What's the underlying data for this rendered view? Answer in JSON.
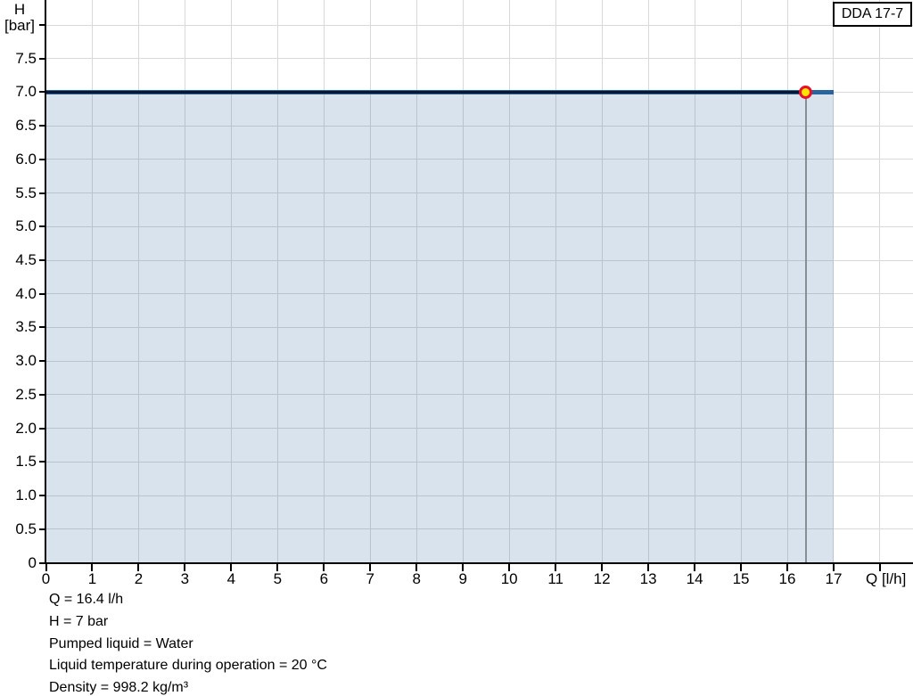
{
  "chart_data": {
    "type": "area",
    "title": "DDA 17-7",
    "xlabel": "Q [l/h]",
    "ylabel_line1": "H",
    "ylabel_line2": "[bar]",
    "xlim": [
      0,
      18.7
    ],
    "ylim": [
      0,
      8.37
    ],
    "x_tick_min": 0,
    "x_tick_max": 18,
    "x_tick_step": 1,
    "x_label_max": 17,
    "y_tick_min": 0,
    "y_tick_max": 8,
    "y_tick_step": 0.5,
    "y_label_max": 7.5,
    "grid": true,
    "legend": "none",
    "series": [
      {
        "name": "pump-curve",
        "points": [
          {
            "x": 0,
            "y": 7
          },
          {
            "x": 17,
            "y": 7
          }
        ]
      }
    ],
    "area": {
      "x_from": 0,
      "x_to": 17,
      "y_from": 0,
      "y_to": 7
    },
    "operating_point": {
      "q": 16.4,
      "h": 7
    },
    "colors": {
      "curve_blue": "#2b639c",
      "curve_core": "#081830",
      "area_fill": "rgba(47,98,153,0.18)",
      "gridline": "#d9d9d9",
      "axis": "#000000",
      "dropline": "#878f96",
      "marker_fill": "#ffe400",
      "marker_ring": "#e8112d",
      "title_box_border": "#000000"
    }
  },
  "info": {
    "lines": [
      "Q = 16.4 l/h",
      "H = 7 bar",
      "Pumped liquid = Water",
      "Liquid temperature during operation = 20 °C",
      "Density = 998.2 kg/m³"
    ]
  }
}
